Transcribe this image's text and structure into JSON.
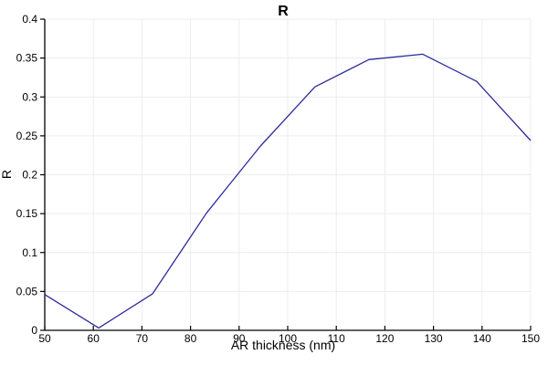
{
  "chart_data": {
    "type": "line",
    "title": "R",
    "xlabel": "AR thickness (nm)",
    "ylabel": "R",
    "x": [
      50,
      61.1,
      72.2,
      83.3,
      94.4,
      105.6,
      116.7,
      127.8,
      138.9,
      150
    ],
    "y": [
      0.046,
      0.003,
      0.047,
      0.151,
      0.237,
      0.313,
      0.348,
      0.355,
      0.32,
      0.244
    ],
    "xlim": [
      50,
      150
    ],
    "ylim": [
      0,
      0.4
    ],
    "xticks": [
      50,
      60,
      70,
      80,
      90,
      100,
      110,
      120,
      130,
      140,
      150
    ],
    "xtick_labels": [
      "50",
      "60",
      "70",
      "80",
      "90",
      "100",
      "110",
      "120",
      "130",
      "140",
      "150"
    ],
    "yticks": [
      0,
      0.05,
      0.1,
      0.15,
      0.2,
      0.25,
      0.3,
      0.35,
      0.4
    ],
    "ytick_labels": [
      "0",
      "0.05",
      "0.1",
      "0.15",
      "0.2",
      "0.25",
      "0.3",
      "0.35",
      "0.4"
    ],
    "grid": true,
    "legend_position": "none",
    "line_color": "#2b2b9e",
    "grid_color": "#ececec",
    "axis_color": "#000000",
    "background": "#ffffff"
  }
}
